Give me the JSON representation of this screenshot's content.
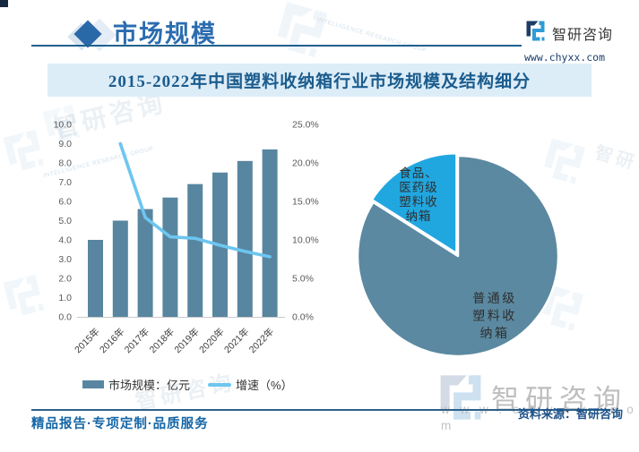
{
  "header": {
    "section_title": "市场规模",
    "brand": {
      "name": "智研咨询",
      "website": "www.chyxx.com"
    }
  },
  "banner": {
    "title": "2015-2022年中国塑料收纳箱行业市场规模及结构细分"
  },
  "chart_data": [
    {
      "type": "bar",
      "subtype": "combo-bar-line",
      "title": "2015-2022年中国塑料收纳箱行业市场规模及结构细分",
      "categories": [
        "2015年",
        "2016年",
        "2017年",
        "2018年",
        "2019年",
        "2020年",
        "2021年",
        "2022年"
      ],
      "series": [
        {
          "name": "市场规模：亿元",
          "type": "bar",
          "axis": "left",
          "color": "#5886a0",
          "values": [
            4.0,
            5.0,
            5.6,
            6.2,
            6.9,
            7.5,
            8.1,
            8.7
          ]
        },
        {
          "name": "增速（%）",
          "type": "line",
          "axis": "right",
          "color": "#6cc6f0",
          "values": [
            null,
            22.5,
            12.9,
            10.4,
            10.2,
            9.3,
            8.5,
            7.8
          ]
        }
      ],
      "left_axis": {
        "min": 0,
        "max": 10,
        "step": 1,
        "tick_labels": [
          "0.0",
          "1.0",
          "2.0",
          "3.0",
          "4.0",
          "5.0",
          "6.0",
          "7.0",
          "8.0",
          "9.0",
          "10.0"
        ]
      },
      "right_axis": {
        "min": 0,
        "max": 25,
        "step": 5,
        "tick_labels": [
          "0.0%",
          "5.0%",
          "10.0%",
          "15.0%",
          "20.0%",
          "25.0%"
        ]
      },
      "grid": false,
      "legend_position": "bottom"
    },
    {
      "type": "pie",
      "slices": [
        {
          "label": "普通级塑料收纳箱",
          "label_lines": [
            "普通级",
            "塑料收",
            "纳箱"
          ],
          "value_pct": 84,
          "color": "#5b89a1",
          "exploded": false
        },
        {
          "label": "食品、医药级塑料收纳箱",
          "label_lines": [
            "食品、",
            "医药级",
            "塑料收",
            "纳箱"
          ],
          "value_pct": 16,
          "color": "#21a7e0",
          "exploded": true
        }
      ]
    }
  ],
  "legend": {
    "items": [
      {
        "label": "市场规模：亿元",
        "swatch": "bar",
        "color": "#5886a0"
      },
      {
        "label": "增速（%）",
        "swatch": "line",
        "color": "#6cc6f0"
      }
    ]
  },
  "footer": {
    "slogan": "精品报告·专项定制·品质服务",
    "source": "资料来源：智研咨询"
  },
  "watermark": {
    "brand": "智研咨询",
    "website": "www.chyxx.com",
    "group_text": "INTELLIGENCE RESEARCH GROUP"
  },
  "colors": {
    "accent_blue": "#2b6cb0",
    "banner_bg": "#ddedf8",
    "bar": "#5886a0",
    "line": "#6cc6f0",
    "pie_main": "#5b89a1",
    "pie_secondary": "#21a7e0",
    "rule": "#1f618f"
  }
}
